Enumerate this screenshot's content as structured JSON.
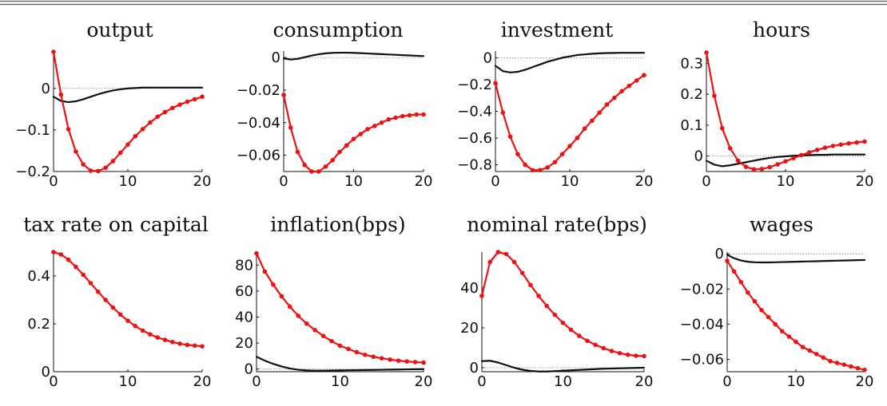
{
  "colors": {
    "series_red": "#ee1111",
    "series_black": "#111111",
    "zero_line": "#777777"
  },
  "chart_data": [
    {
      "type": "line",
      "title": "output",
      "xlim": [
        0,
        20
      ],
      "ylim": [
        -0.2,
        0.09
      ],
      "xticks": [
        0,
        10,
        20
      ],
      "yticks": [
        0,
        -0.1,
        -0.2
      ],
      "ytick_labels": [
        "0",
        "−0.1",
        "−0.2"
      ],
      "x": [
        0,
        1,
        2,
        3,
        4,
        5,
        6,
        7,
        8,
        9,
        10,
        11,
        12,
        13,
        14,
        15,
        16,
        17,
        18,
        19,
        20
      ],
      "series": [
        {
          "color": "#ee1111",
          "markers": true,
          "values": [
            0.088,
            -0.015,
            -0.098,
            -0.152,
            -0.183,
            -0.198,
            -0.199,
            -0.191,
            -0.175,
            -0.155,
            -0.135,
            -0.115,
            -0.098,
            -0.082,
            -0.068,
            -0.057,
            -0.047,
            -0.039,
            -0.032,
            -0.026,
            -0.02
          ]
        },
        {
          "color": "#111111",
          "markers": false,
          "values": [
            -0.02,
            -0.03,
            -0.033,
            -0.031,
            -0.026,
            -0.02,
            -0.014,
            -0.009,
            -0.005,
            -0.002,
            0.0,
            0.001,
            0.002,
            0.002,
            0.002,
            0.002,
            0.002,
            0.002,
            0.002,
            0.002,
            0.002
          ]
        }
      ]
    },
    {
      "type": "line",
      "title": "consumption",
      "xlim": [
        0,
        20
      ],
      "ylim": [
        -0.07,
        0.004
      ],
      "xticks": [
        0,
        10,
        20
      ],
      "yticks": [
        0,
        -0.02,
        -0.04,
        -0.06
      ],
      "ytick_labels": [
        "0",
        "−0.02",
        "−0.04",
        "−0.06"
      ],
      "x": [
        0,
        1,
        2,
        3,
        4,
        5,
        6,
        7,
        8,
        9,
        10,
        11,
        12,
        13,
        14,
        15,
        16,
        17,
        18,
        19,
        20
      ],
      "series": [
        {
          "color": "#ee1111",
          "markers": true,
          "values": [
            -0.023,
            -0.043,
            -0.058,
            -0.066,
            -0.07,
            -0.07,
            -0.067,
            -0.063,
            -0.058,
            -0.054,
            -0.05,
            -0.047,
            -0.044,
            -0.042,
            -0.04,
            -0.038,
            -0.037,
            -0.036,
            -0.0355,
            -0.035,
            -0.035
          ]
        },
        {
          "color": "#111111",
          "markers": false,
          "values": [
            -0.0005,
            -0.0012,
            -0.0008,
            0.0002,
            0.0012,
            0.002,
            0.0026,
            0.0029,
            0.003,
            0.003,
            0.0029,
            0.0027,
            0.0025,
            0.0023,
            0.0021,
            0.0019,
            0.0017,
            0.0015,
            0.0013,
            0.0011,
            0.0009
          ]
        }
      ]
    },
    {
      "type": "line",
      "title": "investment",
      "xlim": [
        0,
        20
      ],
      "ylim": [
        -0.85,
        0.05
      ],
      "xticks": [
        0,
        10,
        20
      ],
      "yticks": [
        0,
        -0.2,
        -0.4,
        -0.6,
        -0.8
      ],
      "ytick_labels": [
        "0",
        "−0.2",
        "−0.4",
        "−0.6",
        "−0.8"
      ],
      "x": [
        0,
        1,
        2,
        3,
        4,
        5,
        6,
        7,
        8,
        9,
        10,
        11,
        12,
        13,
        14,
        15,
        16,
        17,
        18,
        19,
        20
      ],
      "series": [
        {
          "color": "#ee1111",
          "markers": true,
          "values": [
            -0.19,
            -0.41,
            -0.59,
            -0.72,
            -0.8,
            -0.84,
            -0.84,
            -0.82,
            -0.78,
            -0.72,
            -0.66,
            -0.6,
            -0.53,
            -0.47,
            -0.41,
            -0.35,
            -0.3,
            -0.25,
            -0.21,
            -0.17,
            -0.13
          ]
        },
        {
          "color": "#111111",
          "markers": false,
          "values": [
            -0.06,
            -0.1,
            -0.11,
            -0.105,
            -0.09,
            -0.07,
            -0.05,
            -0.03,
            -0.015,
            0.0,
            0.01,
            0.02,
            0.025,
            0.03,
            0.033,
            0.035,
            0.036,
            0.037,
            0.037,
            0.037,
            0.037
          ]
        }
      ]
    },
    {
      "type": "line",
      "title": "hours",
      "xlim": [
        0,
        20
      ],
      "ylim": [
        -0.05,
        0.34
      ],
      "xticks": [
        0,
        10,
        20
      ],
      "yticks": [
        0,
        0.1,
        0.2,
        0.3
      ],
      "ytick_labels": [
        "0",
        "0.1",
        "0.2",
        "0.3"
      ],
      "x": [
        0,
        1,
        2,
        3,
        4,
        5,
        6,
        7,
        8,
        9,
        10,
        11,
        12,
        13,
        14,
        15,
        16,
        17,
        18,
        19,
        20
      ],
      "series": [
        {
          "color": "#ee1111",
          "markers": true,
          "values": [
            0.335,
            0.195,
            0.09,
            0.025,
            -0.015,
            -0.035,
            -0.043,
            -0.042,
            -0.036,
            -0.027,
            -0.017,
            -0.007,
            0.003,
            0.012,
            0.02,
            0.027,
            0.033,
            0.037,
            0.041,
            0.044,
            0.047
          ]
        },
        {
          "color": "#111111",
          "markers": false,
          "values": [
            -0.015,
            -0.028,
            -0.033,
            -0.03,
            -0.025,
            -0.02,
            -0.015,
            -0.01,
            -0.006,
            -0.003,
            -0.001,
            0.001,
            0.002,
            0.003,
            0.004,
            0.004,
            0.005,
            0.005,
            0.005,
            0.005,
            0.005
          ]
        }
      ]
    },
    {
      "type": "line",
      "title": "tax rate on capital",
      "xlim": [
        0,
        20
      ],
      "ylim": [
        0,
        0.5
      ],
      "xticks": [
        0,
        10,
        20
      ],
      "yticks": [
        0,
        0.2,
        0.4
      ],
      "ytick_labels": [
        "0",
        "0.2",
        "0.4"
      ],
      "x": [
        0,
        1,
        2,
        3,
        4,
        5,
        6,
        7,
        8,
        9,
        10,
        11,
        12,
        13,
        14,
        15,
        16,
        17,
        18,
        19,
        20
      ],
      "series": [
        {
          "color": "#ee1111",
          "markers": true,
          "values": [
            0.5,
            0.49,
            0.468,
            0.438,
            0.405,
            0.37,
            0.334,
            0.3,
            0.268,
            0.239,
            0.213,
            0.191,
            0.172,
            0.156,
            0.143,
            0.133,
            0.124,
            0.117,
            0.112,
            0.109,
            0.106
          ]
        }
      ]
    },
    {
      "type": "line",
      "title": "inflation(bps)",
      "xlim": [
        0,
        20
      ],
      "ylim": [
        -2,
        90
      ],
      "xticks": [
        0,
        10,
        20
      ],
      "yticks": [
        0,
        20,
        40,
        60,
        80
      ],
      "ytick_labels": [
        "0",
        "20",
        "40",
        "60",
        "80"
      ],
      "x": [
        0,
        1,
        2,
        3,
        4,
        5,
        6,
        7,
        8,
        9,
        10,
        11,
        12,
        13,
        14,
        15,
        16,
        17,
        18,
        19,
        20
      ],
      "series": [
        {
          "color": "#ee1111",
          "markers": true,
          "values": [
            89,
            75,
            65,
            56,
            48,
            41,
            35,
            30,
            25.5,
            21.5,
            18,
            15.5,
            13,
            11,
            9.5,
            8.3,
            7.3,
            6.5,
            5.9,
            5.4,
            5.0
          ]
        },
        {
          "color": "#111111",
          "markers": false,
          "values": [
            9.5,
            6.5,
            4,
            2,
            0.5,
            -0.5,
            -1,
            -1.2,
            -1.2,
            -1.1,
            -1,
            -0.9,
            -0.8,
            -0.7,
            -0.6,
            -0.5,
            -0.4,
            -0.3,
            -0.2,
            -0.1,
            0
          ]
        }
      ]
    },
    {
      "type": "line",
      "title": "nominal rate(bps)",
      "xlim": [
        0,
        20
      ],
      "ylim": [
        -2,
        58
      ],
      "xticks": [
        0,
        10,
        20
      ],
      "yticks": [
        0,
        20,
        40
      ],
      "ytick_labels": [
        "0",
        "20",
        "40"
      ],
      "x": [
        0,
        1,
        2,
        3,
        4,
        5,
        6,
        7,
        8,
        9,
        10,
        11,
        12,
        13,
        14,
        15,
        16,
        17,
        18,
        19,
        20
      ],
      "series": [
        {
          "color": "#ee1111",
          "markers": true,
          "values": [
            36,
            53,
            58,
            57,
            53,
            47.5,
            41.5,
            36,
            31,
            26.5,
            22.5,
            19,
            16,
            13.5,
            11.5,
            9.8,
            8.4,
            7.3,
            6.5,
            6.0,
            5.8
          ]
        },
        {
          "color": "#111111",
          "markers": false,
          "values": [
            3.3,
            3.5,
            2.6,
            1.3,
            0,
            -1,
            -1.6,
            -1.9,
            -1.9,
            -1.7,
            -1.5,
            -1.3,
            -1.1,
            -0.9,
            -0.7,
            -0.5,
            -0.4,
            -0.3,
            -0.2,
            -0.1,
            0
          ]
        }
      ]
    },
    {
      "type": "line",
      "title": "wages",
      "xlim": [
        0,
        20
      ],
      "ylim": [
        -0.067,
        0.001
      ],
      "xticks": [
        0,
        10,
        20
      ],
      "yticks": [
        0,
        -0.02,
        -0.04,
        -0.06
      ],
      "ytick_labels": [
        "0",
        "−0.02",
        "−0.04",
        "−0.06"
      ],
      "x": [
        0,
        1,
        2,
        3,
        4,
        5,
        6,
        7,
        8,
        9,
        10,
        11,
        12,
        13,
        14,
        15,
        16,
        17,
        18,
        19,
        20
      ],
      "series": [
        {
          "color": "#ee1111",
          "markers": true,
          "values": [
            -0.004,
            -0.01,
            -0.016,
            -0.022,
            -0.027,
            -0.032,
            -0.036,
            -0.04,
            -0.044,
            -0.047,
            -0.05,
            -0.053,
            -0.055,
            -0.057,
            -0.059,
            -0.061,
            -0.062,
            -0.063,
            -0.064,
            -0.065,
            -0.066
          ]
        },
        {
          "color": "#111111",
          "markers": false,
          "values": [
            -0.0005,
            -0.0025,
            -0.0038,
            -0.0045,
            -0.0048,
            -0.0049,
            -0.0049,
            -0.0048,
            -0.0047,
            -0.0046,
            -0.0045,
            -0.0044,
            -0.0043,
            -0.0042,
            -0.0041,
            -0.004,
            -0.0039,
            -0.0038,
            -0.0037,
            -0.0036,
            -0.0035
          ]
        }
      ]
    }
  ]
}
